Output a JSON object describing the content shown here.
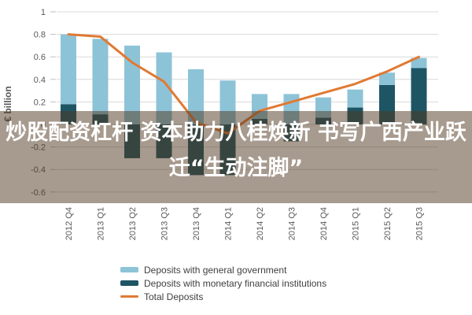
{
  "overlay": {
    "line1": "炒股配资杠杆 资本助力八桂焕新 书写广西产业跃",
    "line2": "迁“生动注脚”"
  },
  "chart_data": {
    "type": "bar",
    "stacked": true,
    "title": "",
    "xlabel": "",
    "ylabel": "€ billion",
    "ylim": [
      -0.6,
      1.0
    ],
    "grid": true,
    "legend_position": "bottom-left",
    "categories": [
      "2012 Q4",
      "2013 Q1",
      "2013 Q2",
      "2013 Q3",
      "2013 Q4",
      "2014 Q1",
      "2014 Q2",
      "2014 Q3",
      "2014 Q4",
      "2015 Q1",
      "2015 Q2",
      "2015 Q3"
    ],
    "series": [
      {
        "name": "Deposits with general government",
        "type": "bar",
        "color": "#8DC3D7",
        "values": [
          0.62,
          0.67,
          0.7,
          0.64,
          0.49,
          0.39,
          0.22,
          0.27,
          0.18,
          0.16,
          0.11,
          0.09
        ]
      },
      {
        "name": "Deposits with monetary financial institutions",
        "type": "bar",
        "color": "#1E5565",
        "values": [
          0.18,
          0.09,
          -0.3,
          -0.3,
          -0.45,
          -0.45,
          0.05,
          -0.15,
          0.06,
          0.15,
          0.35,
          0.5
        ]
      },
      {
        "name": "Total Deposits",
        "type": "line",
        "color": "#E07A33",
        "values": [
          0.8,
          0.78,
          0.55,
          0.38,
          0.02,
          -0.08,
          0.12,
          0.2,
          0.28,
          0.36,
          0.47,
          0.6
        ]
      }
    ],
    "yticks": [
      {
        "label": "1",
        "value": 1.0
      },
      {
        "label": "0.8",
        "value": 0.8
      },
      {
        "label": "0.6",
        "value": 0.6
      },
      {
        "label": "0.4",
        "value": 0.4
      },
      {
        "label": "0.2",
        "value": 0.2
      },
      {
        "label": "0",
        "value": 0.0
      },
      {
        "label": "-0.2",
        "value": -0.2
      },
      {
        "label": "-0.4",
        "value": -0.4
      },
      {
        "label": "-0.6",
        "value": -0.6
      }
    ]
  },
  "colors": {
    "background": "#FFFFFF",
    "gridline": "#D9D9D9",
    "tick_mark": "#BFBFBF",
    "axis_text": "#595959",
    "legend_text": "#404040",
    "overlay_band": "rgba(79,53,29,0.5)",
    "overlay_text": "#FFFFFF"
  }
}
